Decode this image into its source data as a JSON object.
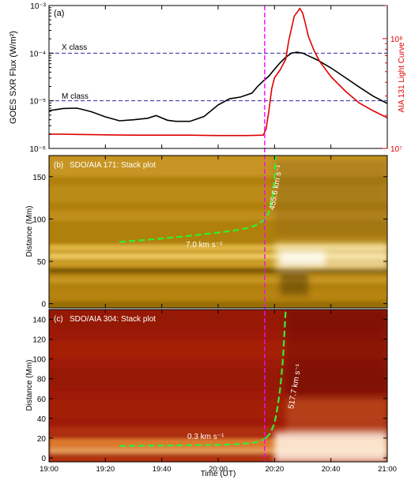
{
  "figure": {
    "x_axis": {
      "label": "Time (UT)",
      "tick_labels": [
        "19:00",
        "19:20",
        "19:40",
        "20:00",
        "20:20",
        "20:40",
        "21:00"
      ],
      "range_minutes": [
        0,
        120
      ],
      "tick_minutes": [
        0,
        20,
        40,
        60,
        80,
        100,
        120
      ]
    },
    "flare_onset_minutes": 76.5,
    "marker_color": "#ff00ff"
  },
  "chart_data": [
    {
      "panel": "(a)",
      "type": "line",
      "left_axis": {
        "label": "GOES SXR Flux (W/m²)",
        "scale": "log",
        "range": [
          1e-06,
          0.001
        ],
        "tick_labels": [
          "10⁻⁶",
          "10⁻⁵",
          "10⁻⁴",
          "10⁻³"
        ]
      },
      "right_axis": {
        "label": "AIA 131 Light Curve",
        "scale": "log",
        "range": [
          10000000.0,
          200000000.0
        ],
        "tick_labels": [
          "10⁷",
          "10⁸"
        ],
        "color": "#e00000"
      },
      "reference_lines": [
        {
          "label": "X class",
          "value": 0.0001
        },
        {
          "label": "M class",
          "value": 1e-05
        }
      ],
      "series": [
        {
          "axis": "left",
          "color": "#000000",
          "x": [
            0,
            5,
            10,
            15,
            20,
            25,
            30,
            35,
            38,
            42,
            45,
            50,
            55,
            60,
            64,
            68,
            72,
            74,
            76,
            78,
            80,
            82,
            84,
            86,
            88,
            90,
            92,
            95,
            100,
            105,
            110,
            115,
            120
          ],
          "y": [
            6.2e-06,
            6.9e-06,
            7e-06,
            5.9e-06,
            4.6e-06,
            3.8e-06,
            4e-06,
            4.3e-06,
            4.9e-06,
            3.9e-06,
            3.7e-06,
            3.7e-06,
            4.7e-06,
            8.2e-06,
            1.1e-05,
            1.2e-05,
            1.45e-05,
            2e-05,
            2.6e-05,
            3.3e-05,
            4.6e-05,
            6.3e-05,
            8.2e-05,
            0.0001,
            0.000105,
            0.0001,
            8.8e-05,
            7.3e-05,
            4.9e-05,
            3.1e-05,
            1.95e-05,
            1.25e-05,
            8.8e-06
          ]
        },
        {
          "axis": "right",
          "color": "#e00000",
          "x": [
            0,
            5,
            10,
            20,
            30,
            40,
            50,
            60,
            70,
            76,
            77,
            78,
            79,
            80,
            82,
            84,
            85,
            87,
            89,
            90,
            91,
            92,
            94,
            96,
            100,
            105,
            110,
            115,
            120
          ],
          "y": [
            13500000.0,
            13500000.0,
            13400000.0,
            13300000.0,
            13200000.0,
            13200000.0,
            13200000.0,
            13100000.0,
            13100000.0,
            13200000.0,
            15000000.0,
            22000000.0,
            35000000.0,
            44000000.0,
            52000000.0,
            65000000.0,
            95000000.0,
            160000000.0,
            188000000.0,
            170000000.0,
            135000000.0,
            105000000.0,
            78000000.0,
            62000000.0,
            45000000.0,
            33500000.0,
            26000000.0,
            22000000.0,
            19000000.0
          ]
        }
      ]
    },
    {
      "panel": "(b)",
      "type": "heatmap",
      "title": "SDO/AIA 171: Stack plot",
      "y_axis": {
        "label": "Distance (Mm)",
        "range": [
          -5,
          175
        ],
        "tick_values": [
          0,
          50,
          100,
          150
        ],
        "tick_labels": [
          "0",
          "50",
          "100",
          "150"
        ]
      },
      "colors": {
        "base": "#b0800c",
        "bright": "#fff8dc",
        "dark": "#3e2a05"
      },
      "fits": [
        {
          "label": "7.0 km s⁻¹",
          "color": "#33ee33",
          "x": [
            25,
            35,
            45,
            55,
            65,
            70,
            73,
            75
          ],
          "y": [
            73,
            75.5,
            78.5,
            82,
            86,
            89,
            92,
            96
          ]
        },
        {
          "label": "455.6 km s⁻¹",
          "color": "#33ee33",
          "x": [
            75,
            76.5,
            77.5,
            78.3,
            79,
            79.5,
            80,
            80.5
          ],
          "y": [
            96,
            99,
            104,
            111,
            120,
            132,
            150,
            178
          ]
        }
      ]
    },
    {
      "panel": "(c)",
      "type": "heatmap",
      "title": "SDO/AIA 304: Stack plot",
      "y_axis": {
        "label": "Distance (Mm)",
        "range": [
          -4,
          150
        ],
        "tick_values": [
          0,
          20,
          40,
          60,
          80,
          100,
          120,
          140
        ],
        "tick_labels": [
          "0",
          "20",
          "40",
          "60",
          "80",
          "100",
          "120",
          "140"
        ]
      },
      "colors": {
        "base": "#9e1a08",
        "bright": "#fff5e6",
        "dark": "#4d0800"
      },
      "fits": [
        {
          "label": "0.3 km s⁻¹",
          "color": "#33ee33",
          "x": [
            25,
            40,
            55,
            65,
            72,
            75,
            77
          ],
          "y": [
            12,
            12.5,
            13,
            13.5,
            15,
            17,
            20
          ]
        },
        {
          "label": "517.7 km s⁻¹",
          "color": "#33ee33",
          "x": [
            77,
            78.5,
            80,
            81,
            82,
            83,
            84
          ],
          "y": [
            20,
            25,
            35,
            50,
            70,
            100,
            152
          ]
        }
      ]
    }
  ]
}
